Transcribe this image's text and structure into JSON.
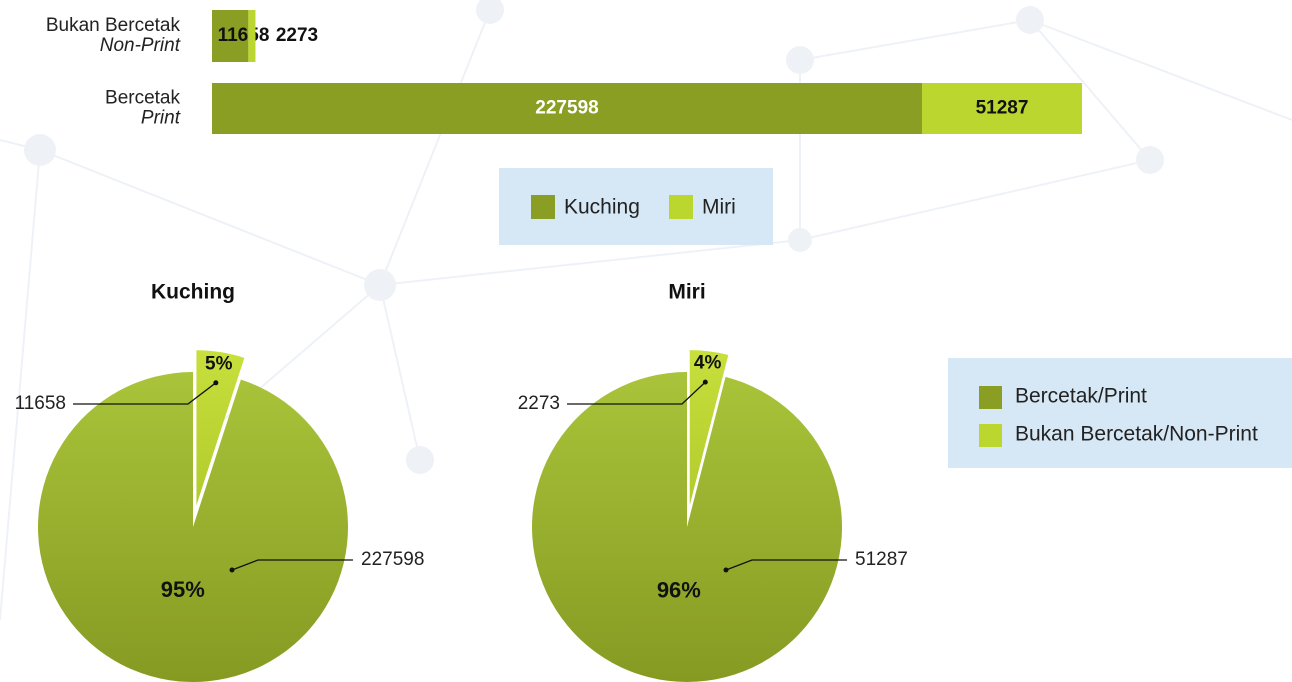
{
  "chart_data": [
    {
      "type": "stacked-hbar",
      "categories": [
        [
          "Bukan Bercetak",
          "Non-Print"
        ],
        [
          "Bercetak",
          "Print"
        ]
      ],
      "series": [
        {
          "name": "Kuching",
          "color": "#8a9e24",
          "values": [
            11658,
            227598
          ]
        },
        {
          "name": "Miri",
          "color": "#bcd630",
          "values": [
            2273,
            51287
          ]
        }
      ]
    },
    {
      "type": "pie",
      "title": "Kuching",
      "values": [
        95,
        5
      ],
      "value_labels": [
        "95%",
        "5%"
      ],
      "counts": [
        227598,
        11658
      ]
    },
    {
      "type": "pie",
      "title": "Miri",
      "values": [
        96,
        4
      ],
      "value_labels": [
        "96%",
        "4%"
      ],
      "counts": [
        51287,
        2273
      ]
    }
  ],
  "pie_legend": {
    "labels": [
      "Bercetak/Print",
      "Bukan Bercetak/Non-Print"
    ],
    "colors": [
      "#8a9e24",
      "#bcd630"
    ]
  }
}
